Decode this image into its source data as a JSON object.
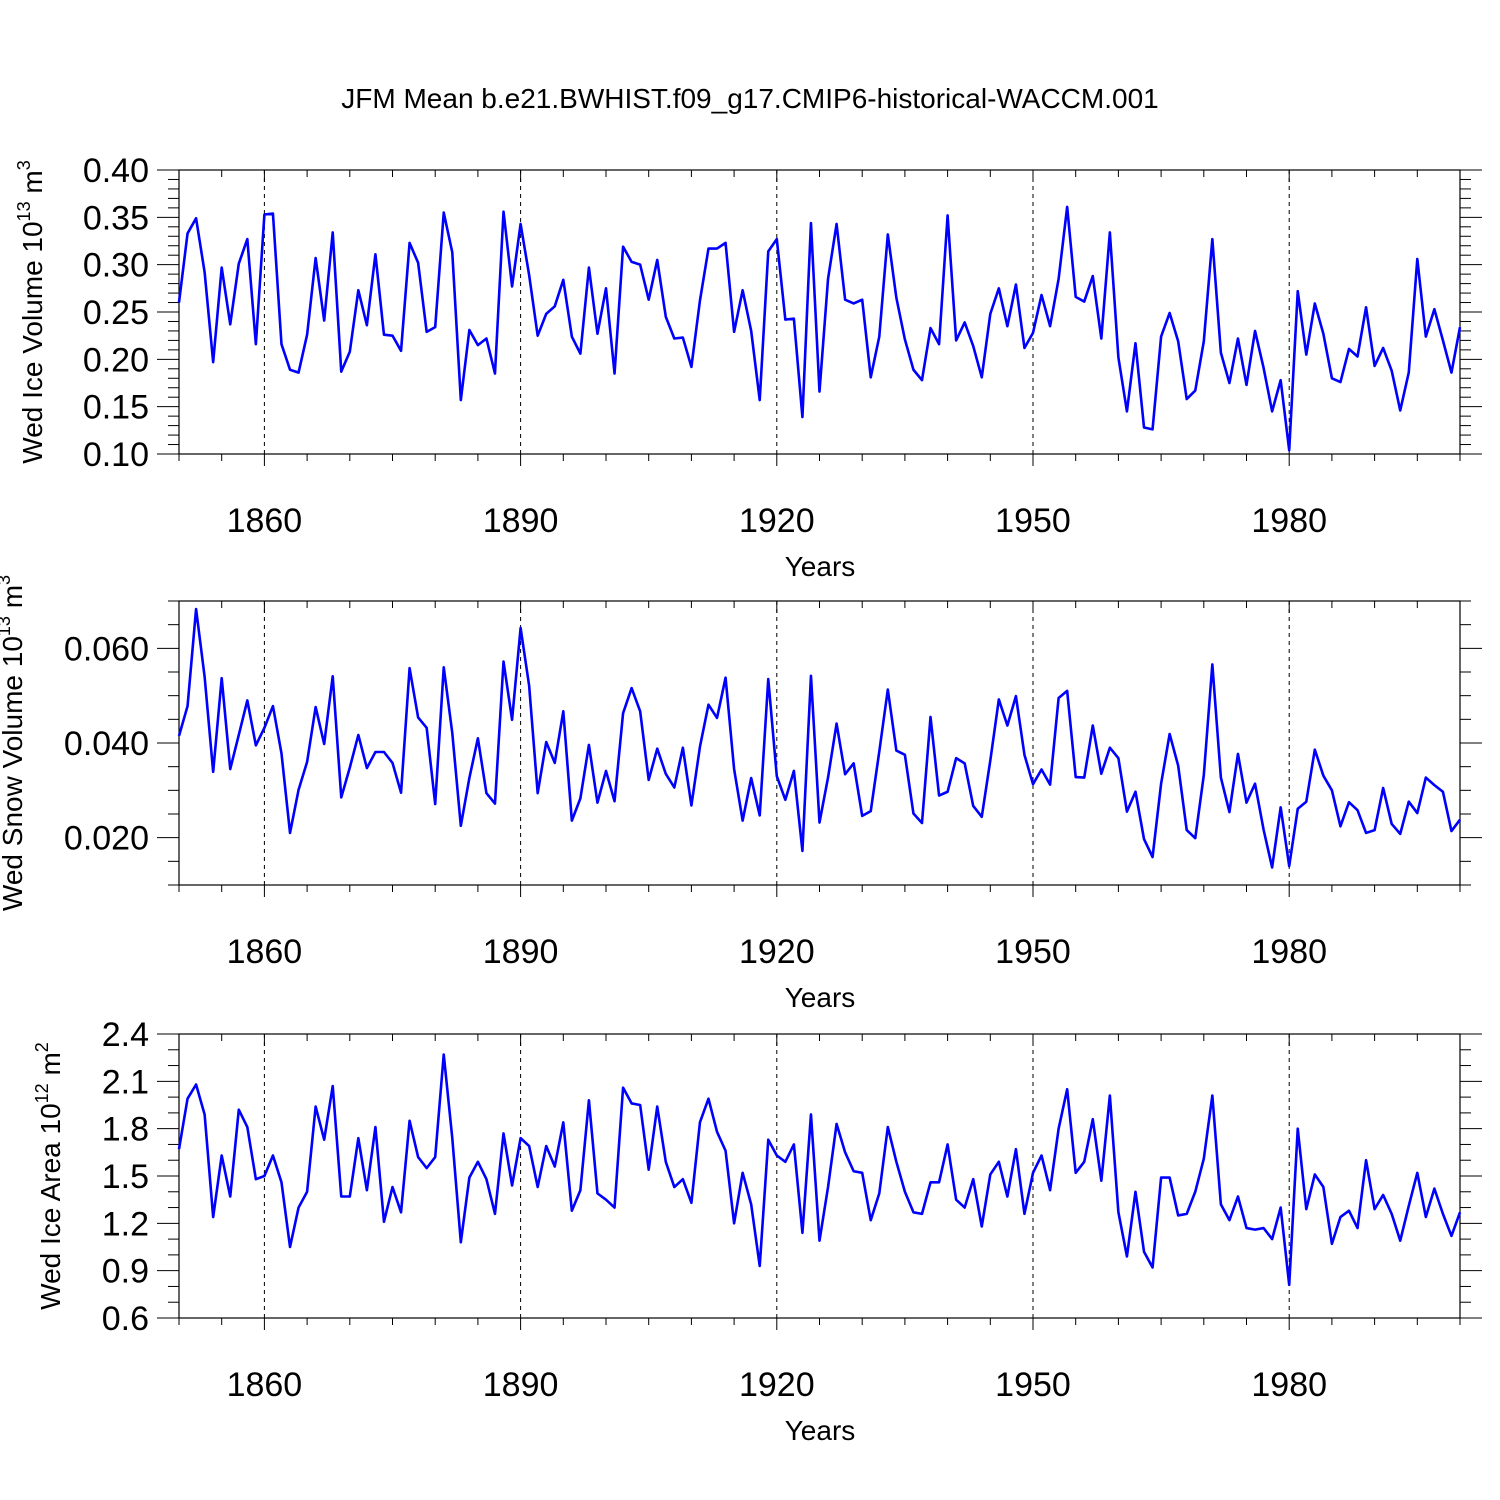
{
  "title": "JFM Mean b.e21.BWHIST.f09_g17.CMIP6-historical-WACCM.001",
  "line_color": "#0000ff",
  "chart_data": [
    {
      "type": "line",
      "ylabel": {
        "text": "Wed Ice Volume 10",
        "exp": "13",
        "unit_tail": " m",
        "unit_exp": "3"
      },
      "xlabel": "Years",
      "xlim": [
        1850,
        2000
      ],
      "ylim": [
        0.1,
        0.4
      ],
      "x_ticks": [
        1860,
        1890,
        1920,
        1950,
        1980
      ],
      "x_tick_labels": [
        "1860",
        "1890",
        "1920",
        "1950",
        "1980"
      ],
      "y_ticks": [
        0.1,
        0.15,
        0.2,
        0.25,
        0.3,
        0.35,
        0.4
      ],
      "y_tick_labels": [
        "0.10",
        "0.15",
        "0.20",
        "0.25",
        "0.30",
        "0.35",
        "0.40"
      ],
      "y_minor_step": 0.01,
      "x_start": 1850,
      "values": [
        0.26,
        0.333,
        0.349,
        0.292,
        0.197,
        0.297,
        0.237,
        0.301,
        0.327,
        0.216,
        0.353,
        0.354,
        0.216,
        0.189,
        0.186,
        0.226,
        0.307,
        0.241,
        0.334,
        0.187,
        0.208,
        0.273,
        0.236,
        0.311,
        0.226,
        0.225,
        0.209,
        0.323,
        0.302,
        0.229,
        0.234,
        0.355,
        0.313,
        0.157,
        0.231,
        0.215,
        0.222,
        0.185,
        0.356,
        0.277,
        0.343,
        0.289,
        0.225,
        0.248,
        0.256,
        0.284,
        0.224,
        0.206,
        0.297,
        0.227,
        0.275,
        0.185,
        0.319,
        0.303,
        0.3,
        0.263,
        0.305,
        0.245,
        0.222,
        0.223,
        0.192,
        0.262,
        0.317,
        0.317,
        0.323,
        0.229,
        0.273,
        0.23,
        0.157,
        0.314,
        0.327,
        0.242,
        0.243,
        0.139,
        0.344,
        0.166,
        0.285,
        0.343,
        0.263,
        0.259,
        0.263,
        0.181,
        0.224,
        0.332,
        0.265,
        0.221,
        0.189,
        0.178,
        0.233,
        0.216,
        0.352,
        0.22,
        0.239,
        0.214,
        0.181,
        0.248,
        0.275,
        0.235,
        0.279,
        0.212,
        0.228,
        0.268,
        0.235,
        0.285,
        0.361,
        0.266,
        0.261,
        0.288,
        0.222,
        0.334,
        0.202,
        0.145,
        0.217,
        0.128,
        0.126,
        0.224,
        0.249,
        0.219,
        0.158,
        0.167,
        0.219,
        0.327,
        0.207,
        0.175,
        0.222,
        0.173,
        0.23,
        0.191,
        0.145,
        0.178,
        0.104,
        0.272,
        0.205,
        0.259,
        0.227,
        0.18,
        0.176,
        0.211,
        0.203,
        0.255,
        0.193,
        0.212,
        0.188,
        0.146,
        0.186,
        0.306,
        0.224,
        0.253,
        0.22,
        0.186,
        0.234
      ]
    },
    {
      "type": "line",
      "ylabel": {
        "text": "Wed Snow Volume 10",
        "exp": "13",
        "unit_tail": " m",
        "unit_exp": "3"
      },
      "xlabel": "Years",
      "xlim": [
        1850,
        2000
      ],
      "ylim": [
        0.01,
        0.07
      ],
      "x_ticks": [
        1860,
        1890,
        1920,
        1950,
        1980
      ],
      "x_tick_labels": [
        "1860",
        "1890",
        "1920",
        "1950",
        "1980"
      ],
      "y_ticks": [
        0.02,
        0.04,
        0.06
      ],
      "y_tick_labels": [
        "0.020",
        "0.040",
        "0.060"
      ],
      "y_minor_step": 0.005,
      "x_start": 1850,
      "values": [
        0.0415,
        0.0478,
        0.0683,
        0.054,
        0.0339,
        0.0537,
        0.0345,
        0.0417,
        0.049,
        0.0395,
        0.0432,
        0.0478,
        0.0378,
        0.021,
        0.0301,
        0.036,
        0.0476,
        0.0398,
        0.0541,
        0.0285,
        0.0348,
        0.0417,
        0.0347,
        0.0381,
        0.0381,
        0.0358,
        0.0295,
        0.0558,
        0.0454,
        0.0432,
        0.0271,
        0.056,
        0.0421,
        0.0225,
        0.0326,
        0.041,
        0.0294,
        0.0272,
        0.0572,
        0.0449,
        0.0643,
        0.0521,
        0.0294,
        0.0402,
        0.0358,
        0.0467,
        0.0236,
        0.0283,
        0.0396,
        0.0274,
        0.0341,
        0.0277,
        0.0463,
        0.0516,
        0.0467,
        0.0322,
        0.0388,
        0.0335,
        0.0306,
        0.039,
        0.0268,
        0.0392,
        0.0481,
        0.0453,
        0.0538,
        0.0345,
        0.0236,
        0.0326,
        0.0247,
        0.0535,
        0.033,
        0.028,
        0.0341,
        0.0172,
        0.0542,
        0.0232,
        0.0327,
        0.0441,
        0.0334,
        0.0357,
        0.0246,
        0.0256,
        0.0382,
        0.0513,
        0.0384,
        0.0375,
        0.0251,
        0.0231,
        0.0455,
        0.0289,
        0.0297,
        0.0368,
        0.0357,
        0.0267,
        0.0244,
        0.0363,
        0.0492,
        0.0437,
        0.0499,
        0.0375,
        0.0313,
        0.0344,
        0.0312,
        0.0495,
        0.051,
        0.0328,
        0.0327,
        0.0437,
        0.0335,
        0.039,
        0.0368,
        0.0255,
        0.0297,
        0.0197,
        0.0159,
        0.0314,
        0.0419,
        0.0352,
        0.0216,
        0.0199,
        0.0332,
        0.0566,
        0.0327,
        0.0254,
        0.0377,
        0.0274,
        0.0314,
        0.0217,
        0.0137,
        0.0264,
        0.014,
        0.0261,
        0.0276,
        0.0386,
        0.0331,
        0.03,
        0.0224,
        0.0275,
        0.0258,
        0.021,
        0.0216,
        0.0305,
        0.0229,
        0.0208,
        0.0276,
        0.0252,
        0.0327,
        0.0311,
        0.0297,
        0.0214,
        0.0238
      ]
    },
    {
      "type": "line",
      "ylabel": {
        "text": "Wed Ice Area 10",
        "exp": "12",
        "unit_tail": " m",
        "unit_exp": "2"
      },
      "xlabel": "Years",
      "xlim": [
        1850,
        2000
      ],
      "ylim": [
        0.6,
        2.4
      ],
      "x_ticks": [
        1860,
        1890,
        1920,
        1950,
        1980
      ],
      "x_tick_labels": [
        "1860",
        "1890",
        "1920",
        "1950",
        "1980"
      ],
      "y_ticks": [
        0.6,
        0.9,
        1.2,
        1.5,
        1.8,
        2.1,
        2.4
      ],
      "y_tick_labels": [
        "0.6",
        "0.9",
        "1.2",
        "1.5",
        "1.8",
        "2.1",
        "2.4"
      ],
      "y_minor_step": 0.1,
      "x_start": 1850,
      "values": [
        1.67,
        1.99,
        2.08,
        1.89,
        1.24,
        1.63,
        1.37,
        1.92,
        1.81,
        1.48,
        1.5,
        1.63,
        1.46,
        1.05,
        1.3,
        1.4,
        1.94,
        1.73,
        2.07,
        1.37,
        1.37,
        1.74,
        1.41,
        1.81,
        1.21,
        1.43,
        1.27,
        1.85,
        1.62,
        1.55,
        1.62,
        2.27,
        1.74,
        1.08,
        1.49,
        1.59,
        1.48,
        1.26,
        1.77,
        1.44,
        1.74,
        1.69,
        1.43,
        1.69,
        1.56,
        1.84,
        1.28,
        1.41,
        1.98,
        1.39,
        1.35,
        1.3,
        2.06,
        1.96,
        1.95,
        1.54,
        1.94,
        1.59,
        1.43,
        1.48,
        1.33,
        1.84,
        1.99,
        1.78,
        1.66,
        1.2,
        1.52,
        1.32,
        0.93,
        1.73,
        1.63,
        1.59,
        1.7,
        1.14,
        1.89,
        1.09,
        1.43,
        1.83,
        1.65,
        1.53,
        1.52,
        1.22,
        1.39,
        1.81,
        1.59,
        1.4,
        1.27,
        1.26,
        1.46,
        1.46,
        1.7,
        1.35,
        1.3,
        1.48,
        1.18,
        1.51,
        1.59,
        1.37,
        1.67,
        1.26,
        1.52,
        1.63,
        1.41,
        1.8,
        2.05,
        1.52,
        1.59,
        1.86,
        1.47,
        2.01,
        1.27,
        0.99,
        1.4,
        1.02,
        0.92,
        1.49,
        1.49,
        1.25,
        1.26,
        1.4,
        1.61,
        2.01,
        1.32,
        1.22,
        1.37,
        1.17,
        1.16,
        1.17,
        1.1,
        1.3,
        0.81,
        1.8,
        1.29,
        1.51,
        1.43,
        1.07,
        1.24,
        1.28,
        1.17,
        1.6,
        1.29,
        1.38,
        1.26,
        1.09,
        1.31,
        1.52,
        1.24,
        1.42,
        1.26,
        1.12,
        1.27
      ]
    }
  ]
}
